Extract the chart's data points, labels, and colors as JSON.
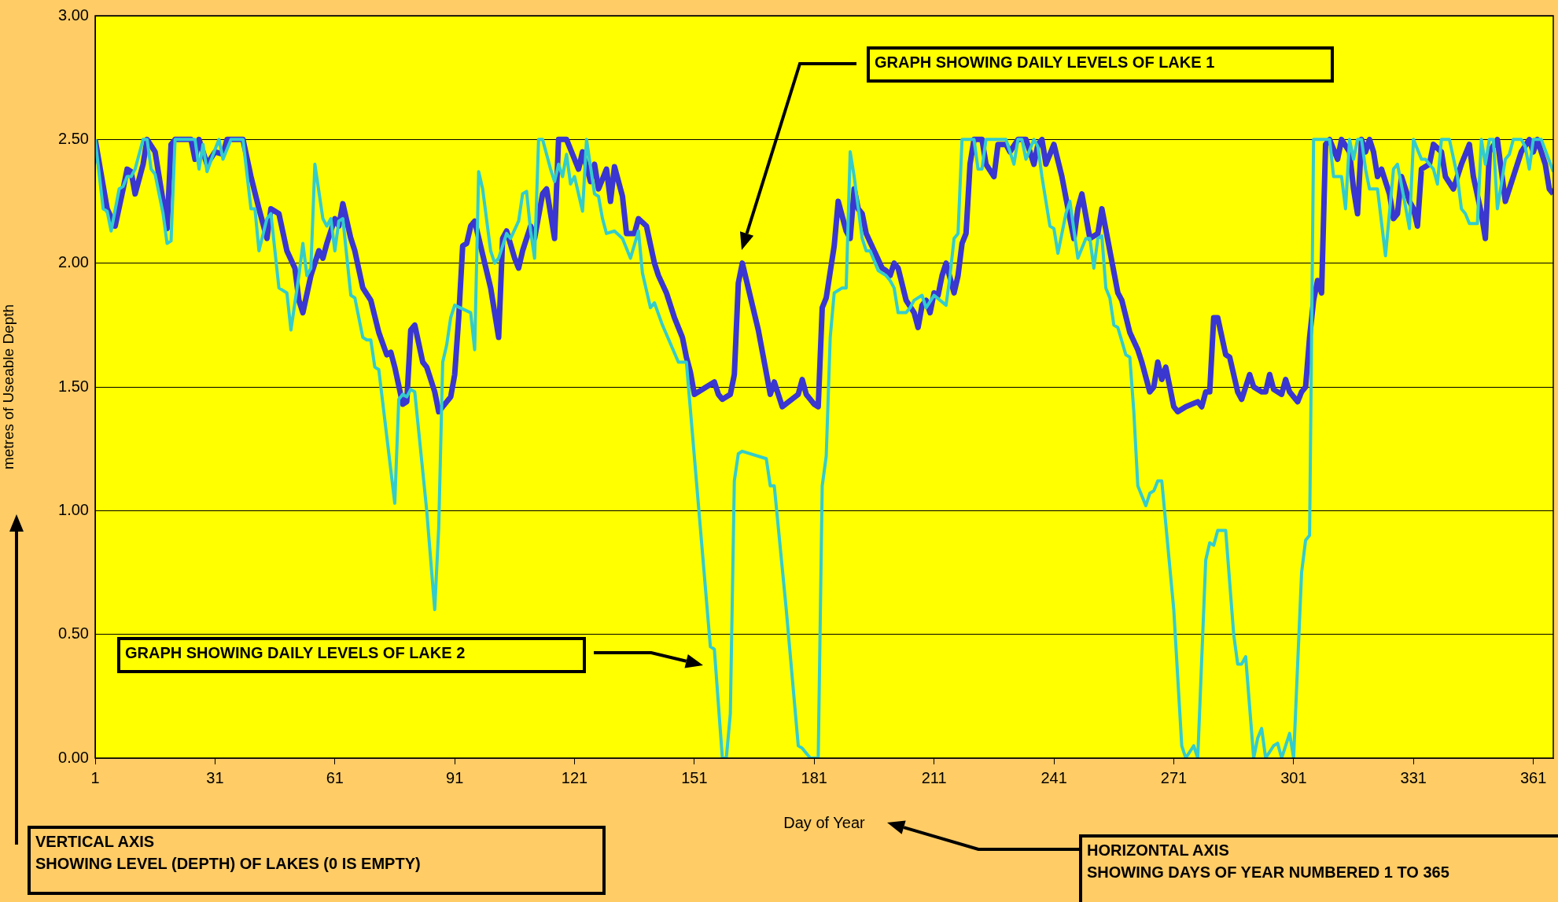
{
  "chart_data": {
    "type": "line",
    "xlabel": "Day of Year",
    "ylabel": "metres of Useable Depth",
    "xlim": [
      1,
      366
    ],
    "xticks": [
      1,
      31,
      61,
      91,
      121,
      151,
      181,
      211,
      241,
      271,
      301,
      331,
      361
    ],
    "ylim": [
      0,
      3
    ],
    "yticks": [
      {
        "value": 0,
        "label": "0.00"
      },
      {
        "value": 0.5,
        "label": "0.50"
      },
      {
        "value": 1,
        "label": "1.00"
      },
      {
        "value": 1.5,
        "label": "1.50"
      },
      {
        "value": 2,
        "label": "2.00"
      },
      {
        "value": 2.5,
        "label": "2.50"
      },
      {
        "value": 3,
        "label": "3.00"
      }
    ],
    "grid": "y",
    "marker": "none",
    "line_style": "solid",
    "series": [
      {
        "color": "#3a36d0",
        "x": [
          1,
          4,
          6,
          8,
          9,
          10,
          11,
          13,
          14,
          16,
          18,
          19,
          20,
          21,
          25,
          26,
          27,
          29,
          31,
          33,
          34,
          38,
          40,
          42,
          44,
          45,
          47,
          49,
          51,
          52,
          53,
          55,
          57,
          58,
          59,
          61,
          62,
          63,
          65,
          66,
          68,
          70,
          72,
          74,
          75,
          76,
          78,
          79,
          80,
          81,
          83,
          84,
          86,
          87,
          89,
          90,
          91,
          92,
          93,
          94,
          95,
          96,
          100,
          102,
          103,
          104,
          106,
          107,
          108,
          109,
          110,
          111,
          113,
          114,
          116,
          117,
          119,
          121,
          122,
          123,
          125,
          126,
          127,
          129,
          130,
          131,
          133,
          134,
          136,
          137,
          139,
          141,
          142,
          144,
          146,
          148,
          149,
          150,
          151,
          154,
          156,
          157,
          158,
          160,
          161,
          162,
          163,
          167,
          170,
          171,
          173,
          177,
          178,
          179,
          181,
          182,
          183,
          184,
          186,
          187,
          189,
          190,
          191,
          192,
          193,
          194,
          196,
          198,
          199,
          200,
          201,
          202,
          204,
          206,
          207,
          208,
          209,
          210,
          211,
          212,
          213,
          214,
          216,
          217,
          218,
          219,
          220,
          221,
          223,
          224,
          226,
          227,
          229,
          230,
          232,
          234,
          236,
          237,
          238,
          239,
          241,
          243,
          245,
          246,
          247,
          248,
          250,
          252,
          253,
          255,
          257,
          258,
          260,
          262,
          263,
          265,
          266,
          267,
          268,
          269,
          270,
          271,
          272,
          274,
          277,
          278,
          279,
          280,
          281,
          282,
          284,
          285,
          287,
          288,
          290,
          291,
          293,
          294,
          295,
          296,
          298,
          299,
          300,
          302,
          303,
          304,
          305,
          306,
          307,
          308,
          309,
          310,
          312,
          313,
          315,
          316,
          317,
          318,
          319,
          320,
          321,
          322,
          323,
          325,
          326,
          327,
          328,
          330,
          331,
          332,
          333,
          335,
          336,
          338,
          339,
          341,
          343,
          345,
          346,
          348,
          349,
          350,
          352,
          354,
          356,
          358,
          360,
          361,
          362,
          364,
          365,
          366
        ],
        "values": [
          2.5,
          2.22,
          2.15,
          2.3,
          2.38,
          2.37,
          2.28,
          2.4,
          2.5,
          2.45,
          2.25,
          2.14,
          2.48,
          2.5,
          2.5,
          2.42,
          2.5,
          2.4,
          2.45,
          2.44,
          2.5,
          2.5,
          2.35,
          2.22,
          2.1,
          2.22,
          2.2,
          2.05,
          1.98,
          1.85,
          1.8,
          1.95,
          2.05,
          2.02,
          2.08,
          2.18,
          2.15,
          2.24,
          2.1,
          2.05,
          1.9,
          1.85,
          1.72,
          1.63,
          1.64,
          1.58,
          1.43,
          1.44,
          1.73,
          1.75,
          1.6,
          1.58,
          1.48,
          1.4,
          1.44,
          1.46,
          1.55,
          1.78,
          2.07,
          2.08,
          2.15,
          2.17,
          1.9,
          1.7,
          2.1,
          2.13,
          2.02,
          1.98,
          2.05,
          2.1,
          2.15,
          2.1,
          2.28,
          2.3,
          2.1,
          2.5,
          2.5,
          2.42,
          2.38,
          2.45,
          2.33,
          2.4,
          2.3,
          2.38,
          2.25,
          2.39,
          2.27,
          2.12,
          2.12,
          2.18,
          2.15,
          2.0,
          1.95,
          1.88,
          1.78,
          1.7,
          1.62,
          1.56,
          1.47,
          1.5,
          1.52,
          1.47,
          1.45,
          1.47,
          1.55,
          1.92,
          2.0,
          1.73,
          1.47,
          1.52,
          1.42,
          1.47,
          1.53,
          1.47,
          1.43,
          1.42,
          1.82,
          1.86,
          2.07,
          2.25,
          2.13,
          2.1,
          2.3,
          2.22,
          2.2,
          2.12,
          2.05,
          1.98,
          1.97,
          1.95,
          2.0,
          1.98,
          1.85,
          1.8,
          1.74,
          1.83,
          1.85,
          1.8,
          1.88,
          1.87,
          1.95,
          2.0,
          1.88,
          1.95,
          2.08,
          2.12,
          2.4,
          2.5,
          2.5,
          2.4,
          2.35,
          2.48,
          2.48,
          2.45,
          2.5,
          2.5,
          2.4,
          2.48,
          2.5,
          2.4,
          2.48,
          2.35,
          2.18,
          2.1,
          2.22,
          2.28,
          2.1,
          2.12,
          2.22,
          2.05,
          1.88,
          1.85,
          1.72,
          1.65,
          1.6,
          1.48,
          1.5,
          1.6,
          1.53,
          1.58,
          1.5,
          1.42,
          1.4,
          1.42,
          1.44,
          1.42,
          1.48,
          1.48,
          1.78,
          1.78,
          1.63,
          1.62,
          1.48,
          1.45,
          1.55,
          1.5,
          1.48,
          1.48,
          1.55,
          1.49,
          1.47,
          1.53,
          1.48,
          1.44,
          1.48,
          1.5,
          1.7,
          1.85,
          1.93,
          1.88,
          2.48,
          2.5,
          2.42,
          2.5,
          2.45,
          2.3,
          2.2,
          2.5,
          2.45,
          2.5,
          2.45,
          2.35,
          2.38,
          2.28,
          2.18,
          2.2,
          2.35,
          2.25,
          2.22,
          2.15,
          2.38,
          2.4,
          2.48,
          2.45,
          2.35,
          2.3,
          2.4,
          2.48,
          2.35,
          2.2,
          2.1,
          2.45,
          2.5,
          2.25,
          2.35,
          2.45,
          2.5,
          2.45,
          2.5,
          2.4,
          2.3,
          2.28
        ]
      },
      {
        "color": "#33cccc",
        "x": [
          1,
          3,
          4,
          5,
          7,
          8,
          9,
          10,
          11,
          12,
          13,
          14,
          15,
          16,
          18,
          19,
          20,
          21,
          25,
          26,
          27,
          28,
          29,
          31,
          32,
          33,
          35,
          38,
          40,
          41,
          42,
          44,
          45,
          47,
          49,
          50,
          52,
          53,
          54,
          55,
          56,
          58,
          59,
          60,
          61,
          62,
          63,
          65,
          66,
          68,
          69,
          70,
          71,
          72,
          74,
          76,
          77,
          78,
          79,
          80,
          81,
          84,
          86,
          87,
          88,
          89,
          90,
          91,
          95,
          96,
          97,
          98,
          100,
          101,
          102,
          104,
          105,
          107,
          108,
          109,
          110,
          111,
          112,
          113,
          115,
          116,
          117,
          118,
          119,
          120,
          121,
          123,
          124,
          126,
          127,
          128,
          129,
          131,
          133,
          135,
          137,
          138,
          140,
          141,
          143,
          147,
          149,
          155,
          156,
          158,
          159,
          160,
          161,
          162,
          163,
          169,
          170,
          171,
          174,
          177,
          178,
          180,
          182,
          183,
          184,
          185,
          186,
          188,
          189,
          190,
          191,
          193,
          194,
          195,
          197,
          199,
          200,
          201,
          202,
          204,
          205,
          206,
          208,
          209,
          211,
          214,
          215,
          216,
          217,
          218,
          221,
          222,
          223,
          224,
          229,
          231,
          232,
          233,
          234,
          236,
          237,
          238,
          240,
          241,
          242,
          244,
          245,
          247,
          249,
          250,
          251,
          252,
          253,
          254,
          255,
          256,
          257,
          259,
          260,
          261,
          262,
          264,
          265,
          266,
          267,
          268,
          271,
          273,
          274,
          276,
          277,
          279,
          280,
          281,
          282,
          284,
          286,
          287,
          288,
          289,
          291,
          292,
          293,
          294,
          296,
          297,
          298,
          300,
          301,
          303,
          304,
          305,
          306,
          310,
          311,
          313,
          314,
          315,
          316,
          317,
          318,
          319,
          320,
          322,
          324,
          326,
          327,
          329,
          330,
          331,
          333,
          334,
          336,
          337,
          338,
          340,
          342,
          343,
          344,
          345,
          347,
          348,
          349,
          350,
          351,
          352,
          354,
          355,
          356,
          358,
          359,
          360,
          361,
          363,
          366
        ],
        "values": [
          2.5,
          2.22,
          2.21,
          2.13,
          2.3,
          2.31,
          2.35,
          2.35,
          2.38,
          2.44,
          2.5,
          2.5,
          2.38,
          2.36,
          2.2,
          2.08,
          2.09,
          2.5,
          2.5,
          2.5,
          2.38,
          2.48,
          2.37,
          2.46,
          2.5,
          2.42,
          2.5,
          2.5,
          2.22,
          2.22,
          2.05,
          2.18,
          2.2,
          1.9,
          1.88,
          1.73,
          1.95,
          2.08,
          1.95,
          1.98,
          2.4,
          2.18,
          2.15,
          2.18,
          2.05,
          2.17,
          2.18,
          1.87,
          1.86,
          1.7,
          1.69,
          1.69,
          1.58,
          1.57,
          1.3,
          1.03,
          1.45,
          1.47,
          1.46,
          1.49,
          1.48,
          1.0,
          0.6,
          0.93,
          1.6,
          1.67,
          1.78,
          1.83,
          1.8,
          1.65,
          2.37,
          2.3,
          2.05,
          2.0,
          2.02,
          2.12,
          2.1,
          2.17,
          2.28,
          2.29,
          2.13,
          2.02,
          2.5,
          2.5,
          2.38,
          2.33,
          2.4,
          2.35,
          2.44,
          2.32,
          2.35,
          2.21,
          2.5,
          2.28,
          2.27,
          2.18,
          2.12,
          2.13,
          2.1,
          2.02,
          2.13,
          1.96,
          1.82,
          1.84,
          1.75,
          1.6,
          1.6,
          0.45,
          0.44,
          0.0,
          0.0,
          0.18,
          1.12,
          1.23,
          1.24,
          1.21,
          1.1,
          1.1,
          0.6,
          0.05,
          0.04,
          0.0,
          0.0,
          1.1,
          1.22,
          1.7,
          1.88,
          1.9,
          1.9,
          2.45,
          2.35,
          2.1,
          2.05,
          2.05,
          1.97,
          1.95,
          1.93,
          1.9,
          1.8,
          1.8,
          1.82,
          1.85,
          1.87,
          1.82,
          1.87,
          1.83,
          1.95,
          2.1,
          2.12,
          2.5,
          2.5,
          2.38,
          2.38,
          2.5,
          2.5,
          2.4,
          2.5,
          2.5,
          2.42,
          2.5,
          2.47,
          2.35,
          2.15,
          2.14,
          2.04,
          2.2,
          2.25,
          2.02,
          2.1,
          2.1,
          1.98,
          2.1,
          2.11,
          1.9,
          1.86,
          1.75,
          1.74,
          1.63,
          1.62,
          1.4,
          1.1,
          1.02,
          1.07,
          1.08,
          1.12,
          1.12,
          0.6,
          0.05,
          0.0,
          0.05,
          0.0,
          0.8,
          0.87,
          0.86,
          0.92,
          0.92,
          0.5,
          0.38,
          0.38,
          0.41,
          0.0,
          0.08,
          0.12,
          0.0,
          0.05,
          0.06,
          0.0,
          0.1,
          0.0,
          0.75,
          0.88,
          0.9,
          2.5,
          2.5,
          2.35,
          2.35,
          2.22,
          2.5,
          2.42,
          2.5,
          2.5,
          2.38,
          2.3,
          2.3,
          2.03,
          2.38,
          2.4,
          2.23,
          2.14,
          2.5,
          2.42,
          2.42,
          2.38,
          2.32,
          2.5,
          2.5,
          2.35,
          2.22,
          2.2,
          2.16,
          2.16,
          2.5,
          2.4,
          2.5,
          2.5,
          2.22,
          2.42,
          2.44,
          2.5,
          2.5,
          2.47,
          2.38,
          2.5,
          2.5,
          2.37
        ]
      }
    ],
    "annotations": [
      "GRAPH SHOWING DAILY LEVELS OF LAKE 1",
      "GRAPH SHOWING DAILY LEVELS OF LAKE 2",
      "VERTICAL AXIS\nSHOWING LEVEL (DEPTH) OF LAKES (0 IS EMPTY)",
      "HORIZONTAL AXIS\nSHOWING DAYS OF YEAR NUMBERED 1 TO 365"
    ]
  }
}
